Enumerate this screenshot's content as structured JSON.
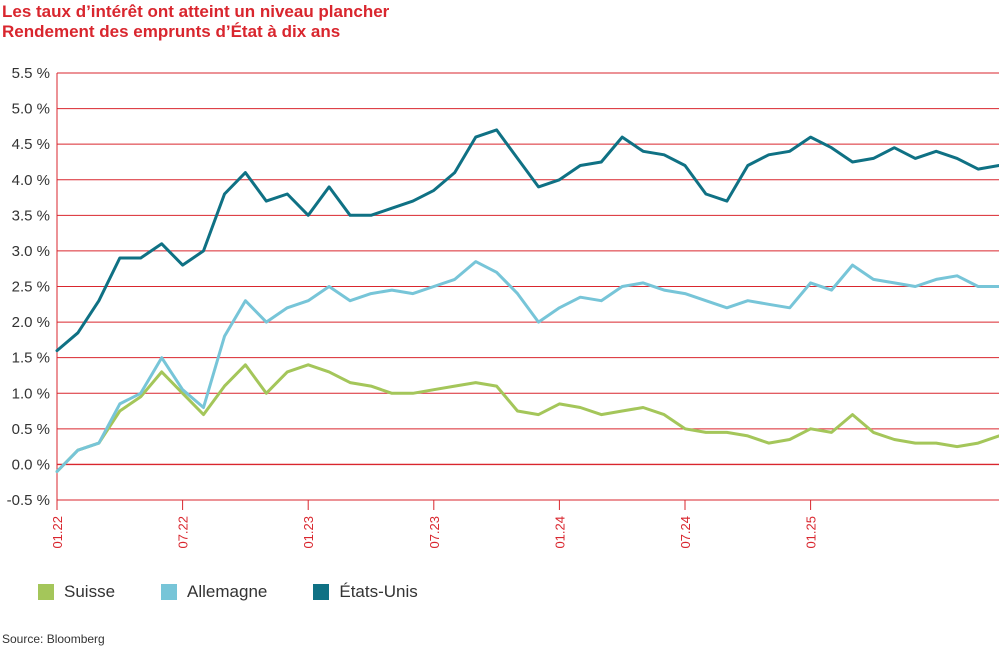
{
  "title": "Les taux d’intérêt ont atteint un niveau plancher",
  "subtitle": "Rendement des emprunts d’État à dix ans",
  "source": "Source: Bloomberg",
  "colors": {
    "accent": "#d9262e",
    "grid": "#d9262e",
    "text": "#333333"
  },
  "chart_data": {
    "type": "line",
    "ylim": [
      -0.5,
      5.5
    ],
    "yticks": [
      5.5,
      5.0,
      4.5,
      4.0,
      3.5,
      3.0,
      2.5,
      2.0,
      1.5,
      1.0,
      0.5,
      0.0,
      -0.5
    ],
    "ytick_labels": [
      "5.5 %",
      "5.0 %",
      "4.5 %",
      "4.0 %",
      "3.5 %",
      "3.0 %",
      "2.5 %",
      "2.0 %",
      "1.5 %",
      "1.0 %",
      "0.5 %",
      "0.0 %",
      "-0.5 %"
    ],
    "xlim": [
      "2022-01",
      "2025-10"
    ],
    "xticks": [
      "2022-01",
      "2022-07",
      "2023-01",
      "2023-07",
      "2024-01",
      "2024-07",
      "2025-01"
    ],
    "xtick_labels": [
      "01.22",
      "07.22",
      "01.23",
      "07.23",
      "01.24",
      "07.24",
      "01.25"
    ],
    "grid": true,
    "legend_position": "bottom-left",
    "x": [
      "2022-01",
      "2022-02",
      "2022-03",
      "2022-04",
      "2022-05",
      "2022-06",
      "2022-07",
      "2022-08",
      "2022-09",
      "2022-10",
      "2022-11",
      "2022-12",
      "2023-01",
      "2023-02",
      "2023-03",
      "2023-04",
      "2023-05",
      "2023-06",
      "2023-07",
      "2023-08",
      "2023-09",
      "2023-10",
      "2023-11",
      "2023-12",
      "2024-01",
      "2024-02",
      "2024-03",
      "2024-04",
      "2024-05",
      "2024-06",
      "2024-07",
      "2024-08",
      "2024-09",
      "2024-10",
      "2024-11",
      "2024-12",
      "2025-01",
      "2025-02",
      "2025-03",
      "2025-04",
      "2025-05",
      "2025-06",
      "2025-07",
      "2025-08",
      "2025-09",
      "2025-10"
    ],
    "series": [
      {
        "name": "Suisse",
        "color": "#a4c65a",
        "values": [
          -0.1,
          0.2,
          0.3,
          0.75,
          0.95,
          1.3,
          1.0,
          0.7,
          1.1,
          1.4,
          1.0,
          1.3,
          1.4,
          1.3,
          1.15,
          1.1,
          1.0,
          1.0,
          1.05,
          1.1,
          1.15,
          1.1,
          0.75,
          0.7,
          0.85,
          0.8,
          0.7,
          0.75,
          0.8,
          0.7,
          0.5,
          0.45,
          0.45,
          0.4,
          0.3,
          0.35,
          0.5,
          0.45,
          0.7,
          0.45,
          0.35,
          0.3,
          0.3,
          0.25,
          0.3,
          0.4
        ]
      },
      {
        "name": "Allemagne",
        "color": "#77c5d8",
        "values": [
          -0.1,
          0.2,
          0.3,
          0.85,
          1.0,
          1.5,
          1.05,
          0.8,
          1.8,
          2.3,
          2.0,
          2.2,
          2.3,
          2.5,
          2.3,
          2.4,
          2.45,
          2.4,
          2.5,
          2.6,
          2.85,
          2.7,
          2.4,
          2.0,
          2.2,
          2.35,
          2.3,
          2.5,
          2.55,
          2.45,
          2.4,
          2.3,
          2.2,
          2.3,
          2.25,
          2.2,
          2.55,
          2.45,
          2.8,
          2.6,
          2.55,
          2.5,
          2.6,
          2.65,
          2.5,
          2.5
        ]
      },
      {
        "name": "États-Unis",
        "color": "#0f7184",
        "values": [
          1.6,
          1.85,
          2.3,
          2.9,
          2.9,
          3.1,
          2.8,
          3.0,
          3.8,
          4.1,
          3.7,
          3.8,
          3.5,
          3.9,
          3.5,
          3.5,
          3.6,
          3.7,
          3.85,
          4.1,
          4.6,
          4.7,
          4.3,
          3.9,
          4.0,
          4.2,
          4.25,
          4.6,
          4.4,
          4.35,
          4.2,
          3.8,
          3.7,
          4.2,
          4.35,
          4.4,
          4.6,
          4.45,
          4.25,
          4.3,
          4.45,
          4.3,
          4.4,
          4.3,
          4.15,
          4.2
        ]
      }
    ]
  }
}
